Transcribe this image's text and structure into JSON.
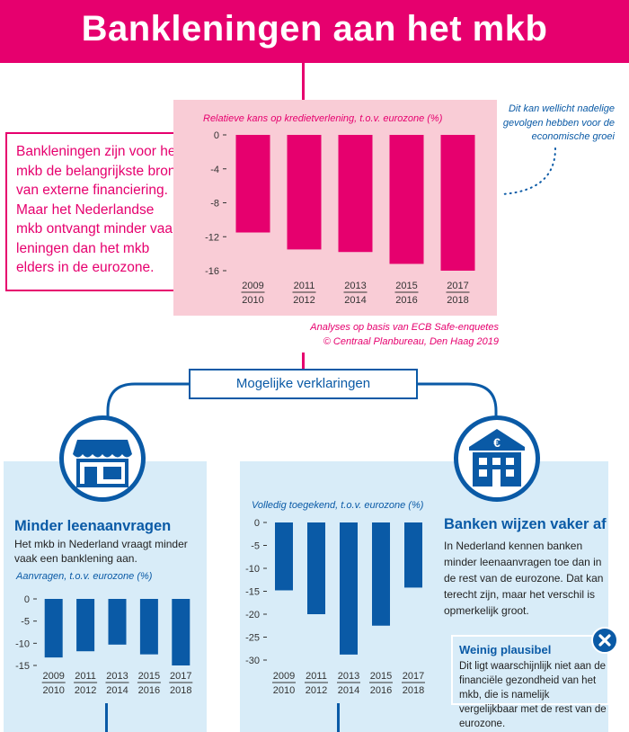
{
  "header": {
    "title": "Bankleningen aan het mkb"
  },
  "intro": {
    "text": "Bankleningen zijn voor het mkb de belangrijkste bron van externe financiering. Maar het Nederlandse mkb ontvangt minder vaak leningen dan het mkb elders in de eurozone."
  },
  "top_panel": {
    "side_note": "Dit kan wellicht nadelige gevolgen hebben voor de economische groei",
    "source_line1": "Analyses op basis van ECB Safe-enquetes",
    "source_line2": "© Centraal Planbureau, Den Haag 2019"
  },
  "explanations": {
    "label": "Mogelijke verklaringen"
  },
  "left_panel": {
    "heading": "Minder leenaanvragen",
    "text": "Het mkb in Nederland vraagt minder vaak een banklening aan."
  },
  "right_panel": {
    "heading": "Banken wijzen vaker af",
    "text": "In Nederland kennen banken minder leenaanvragen toe dan in de rest van de eurozone. Dat kan terecht zijn, maar het verschil is opmerkelijk groot."
  },
  "note": {
    "heading": "Weinig plausibel",
    "text": "Dit ligt waarschijnlijk niet aan de financiële gezondheid van het mkb, die is namelijk vergelijkbaar met de rest van de eurozone."
  },
  "colors": {
    "pink": "#e6006e",
    "pink_light": "#f9ccd6",
    "blue": "#0a5aa6",
    "blue_light": "#d8ecf8"
  },
  "icons": {
    "left": "shop-icon",
    "right": "bank-euro-icon",
    "close": "close-icon"
  },
  "chart_data": [
    {
      "type": "bar",
      "title": "Relatieve kans op kredietverlening, t.o.v. eurozone (%)",
      "categories": [
        [
          "2009",
          "2010"
        ],
        [
          "2011",
          "2012"
        ],
        [
          "2013",
          "2014"
        ],
        [
          "2015",
          "2016"
        ],
        [
          "2017",
          "2018"
        ]
      ],
      "values": [
        -11.5,
        -13.5,
        -13.8,
        -15.2,
        -16.0
      ],
      "ylim": [
        -16,
        0
      ],
      "yticks": [
        0,
        -4,
        -8,
        -12,
        -16
      ],
      "color": "#e6006e"
    },
    {
      "type": "bar",
      "title": "Aanvragen, t.o.v. eurozone (%)",
      "categories": [
        [
          "2009",
          "2010"
        ],
        [
          "2011",
          "2012"
        ],
        [
          "2013",
          "2014"
        ],
        [
          "2015",
          "2016"
        ],
        [
          "2017",
          "2018"
        ]
      ],
      "values": [
        -13.2,
        -11.8,
        -10.3,
        -12.5,
        -15.0
      ],
      "ylim": [
        -15,
        0
      ],
      "yticks": [
        0,
        -5,
        -10,
        -15
      ],
      "color": "#0a5aa6"
    },
    {
      "type": "bar",
      "title": "Volledig toegekend, t.o.v. eurozone (%)",
      "categories": [
        [
          "2009",
          "2010"
        ],
        [
          "2011",
          "2012"
        ],
        [
          "2013",
          "2014"
        ],
        [
          "2015",
          "2016"
        ],
        [
          "2017",
          "2018"
        ]
      ],
      "values": [
        -14.8,
        -20.0,
        -28.8,
        -22.5,
        -14.2
      ],
      "ylim": [
        -30,
        0
      ],
      "yticks": [
        0,
        -5,
        -10,
        -15,
        -20,
        -25,
        -30
      ],
      "color": "#0a5aa6"
    }
  ]
}
